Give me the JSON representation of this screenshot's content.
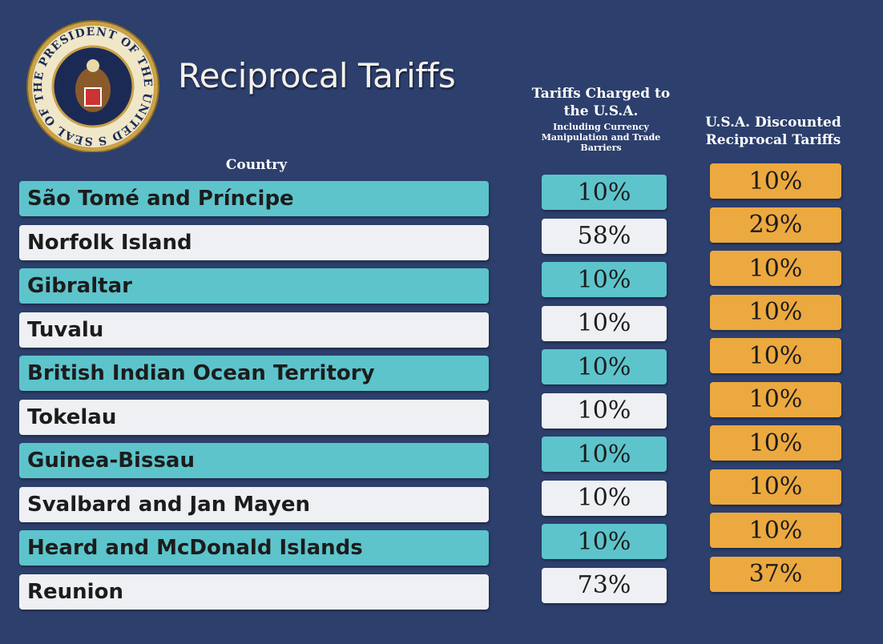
{
  "seal_text": "SEAL OF THE PRESIDENT OF THE UNITED STATES",
  "title": "Reciprocal Tariffs",
  "table": {
    "headers": {
      "country": "Country",
      "charged": "Tariffs Charged to the U.S.A.",
      "charged_note": "Including Currency Manipulation and Trade Barriers",
      "discounted": "U.S.A. Discounted Reciprocal Tariffs"
    },
    "rows": [
      [
        "São Tomé and Príncipe",
        "10%",
        "10%"
      ],
      [
        "Norfolk Island",
        "58%",
        "29%"
      ],
      [
        "Gibraltar",
        "10%",
        "10%"
      ],
      [
        "Tuvalu",
        "10%",
        "10%"
      ],
      [
        "British Indian Ocean Territory",
        "10%",
        "10%"
      ],
      [
        "Tokelau",
        "10%",
        "10%"
      ],
      [
        "Guinea-Bissau",
        "10%",
        "10%"
      ],
      [
        "Svalbard and Jan Mayen",
        "10%",
        "10%"
      ],
      [
        "Heard and McDonald Islands",
        "10%",
        "10%"
      ],
      [
        "Reunion",
        "73%",
        "37%"
      ]
    ]
  }
}
